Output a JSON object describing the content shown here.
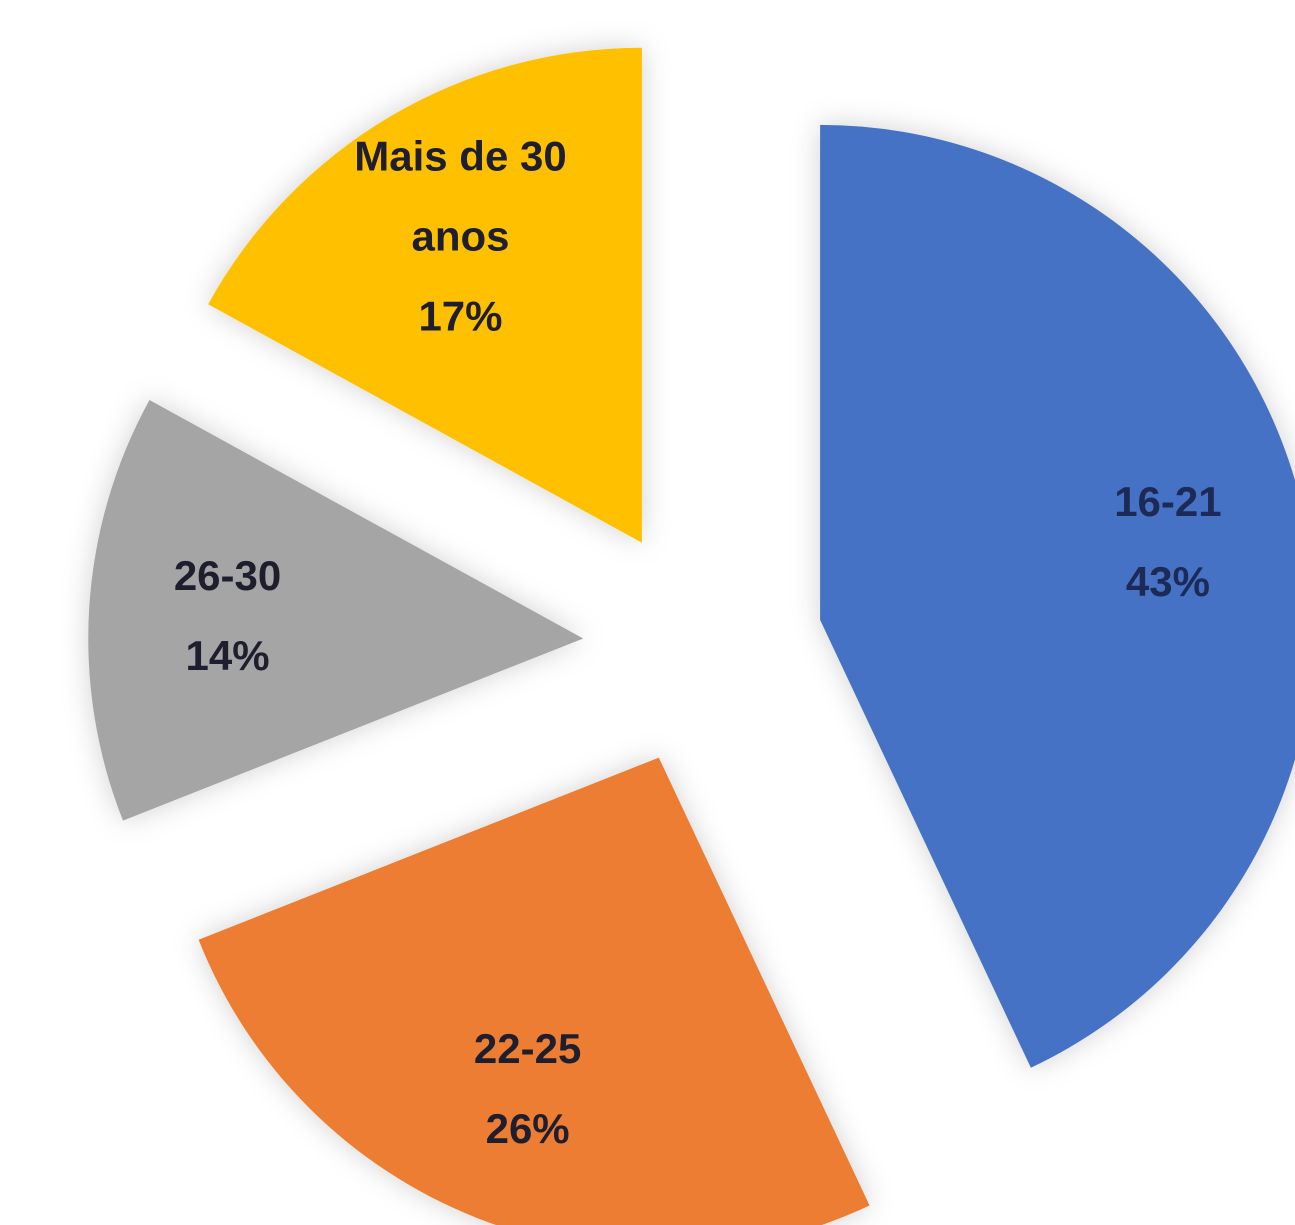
{
  "chart_data": {
    "type": "pie",
    "categories": [
      "16-21",
      "22-25",
      "26-30",
      "Mais de 30 anos"
    ],
    "values": [
      43,
      26,
      14,
      17
    ],
    "value_labels": [
      "43%",
      "26%",
      "14%",
      "17%"
    ],
    "colors": [
      "#4472c4",
      "#ed7d31",
      "#a5a5a5",
      "#ffc000"
    ],
    "exploded": true
  }
}
